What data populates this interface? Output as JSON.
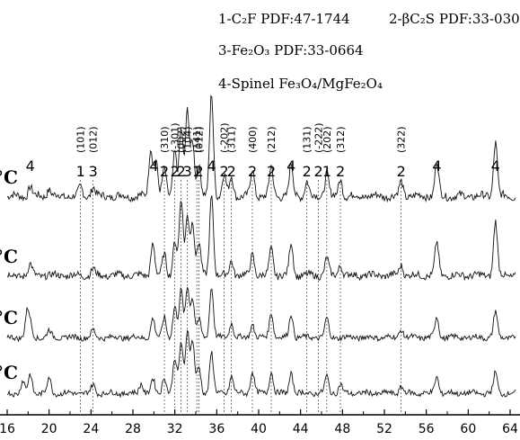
{
  "chart_data": {
    "type": "line",
    "xlim": [
      16,
      64.6
    ],
    "x_ticks": [
      "16",
      "20",
      "24",
      "28",
      "32",
      "36",
      "40",
      "44",
      "48",
      "52",
      "56",
      "60",
      "64"
    ],
    "legend": {
      "line1": "1-C₂F PDF:47-1744",
      "line1b": "2-βC₂S PDF:33-030",
      "line2": "3-Fe₂O₃ PDF:33-0664",
      "line3": "4-Spinel Fe₃O₄/MgFe₂O₄"
    },
    "temperature_labels": [
      "°C",
      "°C",
      "°C",
      "°C"
    ],
    "peak_markers": [
      {
        "x": 18.2,
        "id": "4"
      },
      {
        "x": 23.0,
        "id": "1",
        "hkl": "(101)"
      },
      {
        "x": 24.2,
        "id": "3",
        "hkl": "(012)"
      },
      {
        "x": 30.0,
        "id": "4"
      },
      {
        "x": 31.0,
        "id": "2",
        "hkl": "(310)"
      },
      {
        "x": 32.0,
        "id": "2",
        "hkl": "(-301)"
      },
      {
        "x": 32.6,
        "id": "2",
        "hkl": "(002)"
      },
      {
        "x": 33.2,
        "id": "3",
        "hkl": "(104)"
      },
      {
        "x": 34.1,
        "id": "1",
        "hkl": "(141)"
      },
      {
        "x": 34.3,
        "id": "2",
        "hkl": "(012)"
      },
      {
        "x": 35.5,
        "id": "4"
      },
      {
        "x": 36.7,
        "id": "2",
        "hkl": "(-202)"
      },
      {
        "x": 37.4,
        "id": "2",
        "hkl": "(311)"
      },
      {
        "x": 39.4,
        "id": "2",
        "hkl": "(400)"
      },
      {
        "x": 41.2,
        "id": "2",
        "hkl": "(212)"
      },
      {
        "x": 43.1,
        "id": "4"
      },
      {
        "x": 44.6,
        "id": "2",
        "hkl": "(131)"
      },
      {
        "x": 45.7,
        "id": "2",
        "hkl": "(-222)"
      },
      {
        "x": 46.5,
        "id": "1",
        "hkl": "(202)"
      },
      {
        "x": 47.8,
        "id": "2",
        "hkl": "(312)"
      },
      {
        "x": 53.6,
        "id": "2",
        "hkl": "(322)"
      },
      {
        "x": 57.0,
        "id": "4"
      },
      {
        "x": 62.6,
        "id": "4"
      }
    ],
    "series": [
      {
        "baseline": 0.0,
        "peaks": [
          [
            18.2,
            8
          ],
          [
            20.0,
            6
          ],
          [
            23.0,
            7
          ],
          [
            24.2,
            8
          ],
          [
            29.7,
            40
          ],
          [
            30.2,
            30
          ],
          [
            31.0,
            22
          ],
          [
            32.0,
            38
          ],
          [
            32.6,
            55
          ],
          [
            33.2,
            70
          ],
          [
            33.7,
            45
          ],
          [
            34.3,
            25
          ],
          [
            35.5,
            85
          ],
          [
            36.7,
            18
          ],
          [
            37.4,
            16
          ],
          [
            39.4,
            22
          ],
          [
            41.2,
            24
          ],
          [
            43.1,
            26
          ],
          [
            44.6,
            12
          ],
          [
            46.5,
            20
          ],
          [
            47.8,
            14
          ],
          [
            53.6,
            12
          ],
          [
            57.0,
            28
          ],
          [
            62.6,
            45
          ]
        ]
      },
      {
        "baseline": 1.0,
        "peaks": [
          [
            18.2,
            10
          ],
          [
            24.2,
            6
          ],
          [
            29.9,
            30
          ],
          [
            31.0,
            20
          ],
          [
            32.0,
            32
          ],
          [
            32.6,
            70
          ],
          [
            33.2,
            55
          ],
          [
            33.7,
            50
          ],
          [
            34.3,
            30
          ],
          [
            35.5,
            75
          ],
          [
            37.4,
            14
          ],
          [
            39.4,
            20
          ],
          [
            41.2,
            25
          ],
          [
            43.1,
            30
          ],
          [
            46.5,
            16
          ],
          [
            47.8,
            10
          ],
          [
            53.6,
            10
          ],
          [
            57.0,
            30
          ],
          [
            62.6,
            50
          ]
        ]
      },
      {
        "baseline": 2.0,
        "peaks": [
          [
            17.9,
            28
          ],
          [
            18.2,
            15
          ],
          [
            20.0,
            8
          ],
          [
            24.2,
            8
          ],
          [
            29.9,
            22
          ],
          [
            31.0,
            25
          ],
          [
            32.0,
            35
          ],
          [
            32.6,
            55
          ],
          [
            33.2,
            60
          ],
          [
            33.7,
            45
          ],
          [
            34.3,
            20
          ],
          [
            35.5,
            60
          ],
          [
            37.4,
            18
          ],
          [
            39.4,
            16
          ],
          [
            41.2,
            30
          ],
          [
            43.1,
            28
          ],
          [
            46.5,
            22
          ],
          [
            53.6,
            10
          ],
          [
            57.0,
            24
          ],
          [
            62.6,
            30
          ]
        ]
      },
      {
        "baseline": 3.0,
        "peaks": [
          [
            17.5,
            14
          ],
          [
            18.2,
            22
          ],
          [
            20.0,
            18
          ],
          [
            24.2,
            10
          ],
          [
            28.8,
            12
          ],
          [
            29.9,
            16
          ],
          [
            31.0,
            20
          ],
          [
            32.0,
            40
          ],
          [
            32.6,
            60
          ],
          [
            33.2,
            75
          ],
          [
            33.7,
            60
          ],
          [
            34.3,
            30
          ],
          [
            35.5,
            48
          ],
          [
            37.4,
            20
          ],
          [
            39.4,
            26
          ],
          [
            41.2,
            26
          ],
          [
            43.1,
            24
          ],
          [
            46.5,
            20
          ],
          [
            47.8,
            10
          ],
          [
            53.6,
            8
          ],
          [
            57.0,
            20
          ],
          [
            62.6,
            24
          ]
        ]
      }
    ]
  }
}
